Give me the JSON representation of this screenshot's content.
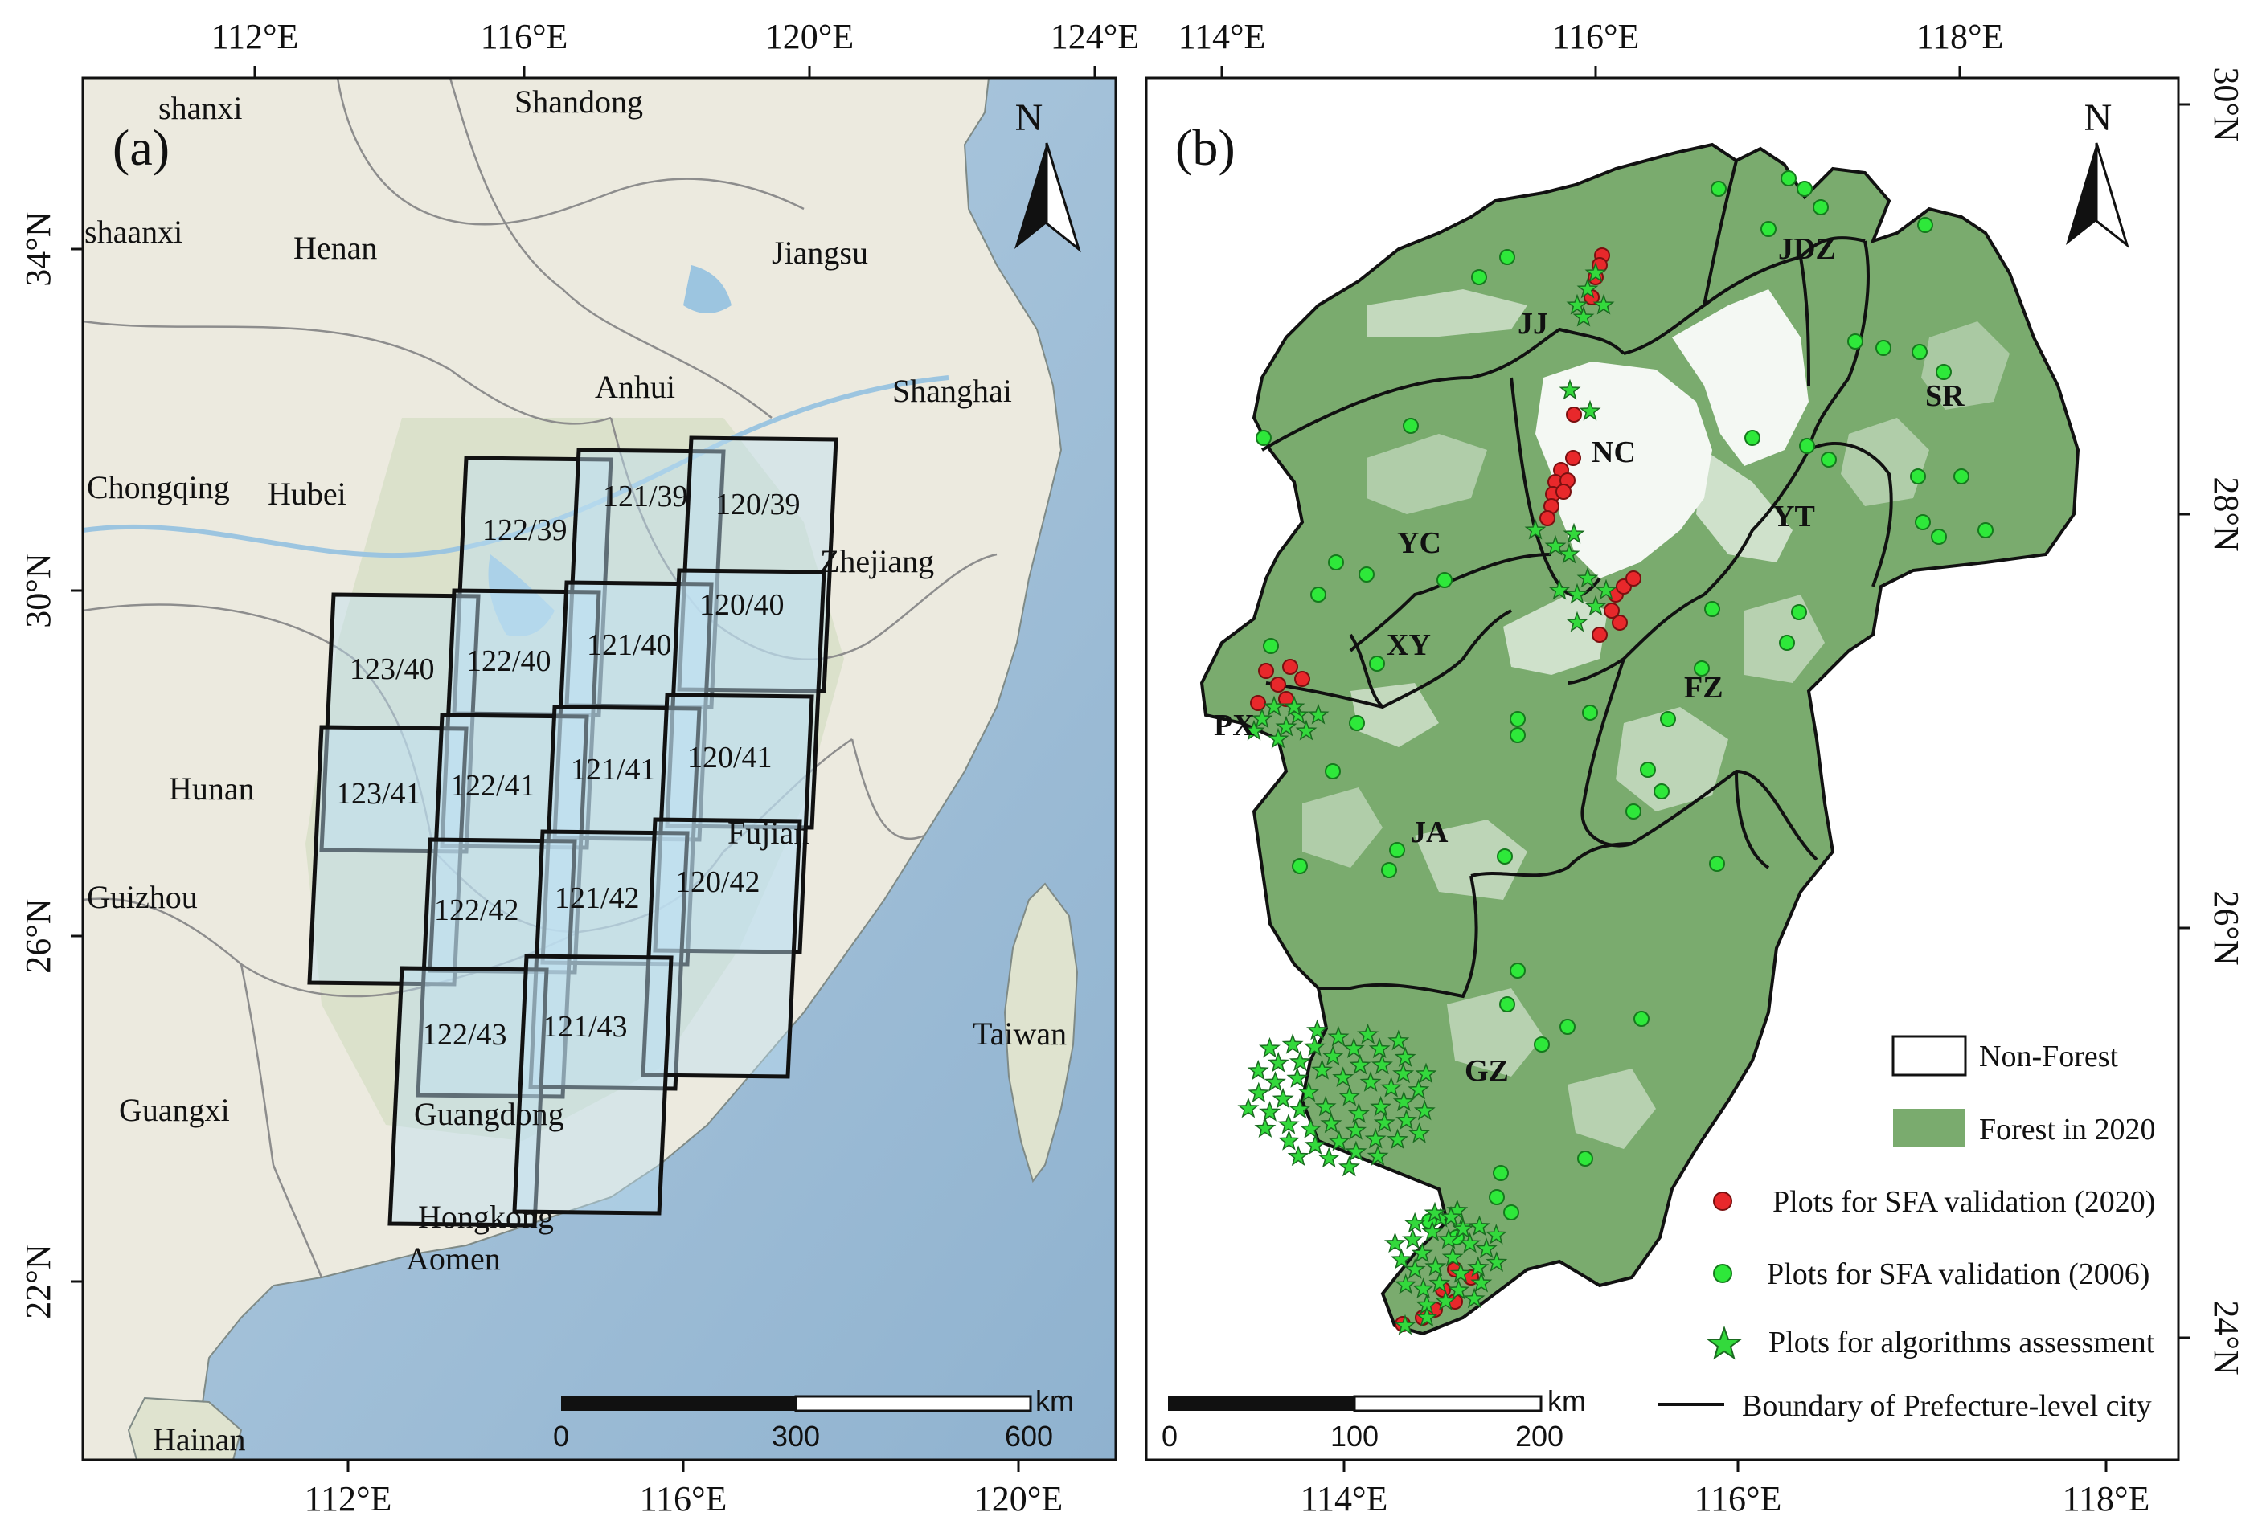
{
  "panel_a": {
    "tag": "(a)",
    "top_ticks": [
      "112°E",
      "116°E",
      "120°E",
      "124°E"
    ],
    "bottom_ticks": [
      "112°E",
      "116°E",
      "120°E"
    ],
    "left_ticks": [
      "34°N",
      "30°N",
      "26°N",
      "22°N"
    ],
    "north_label": "N",
    "place_labels": [
      {
        "text": "shanxi"
      },
      {
        "text": "Shandong"
      },
      {
        "text": "shaanxi"
      },
      {
        "text": "Henan"
      },
      {
        "text": "Jiangsu"
      },
      {
        "text": "Anhui"
      },
      {
        "text": "Shanghai"
      },
      {
        "text": "Chongqing"
      },
      {
        "text": "Hubei"
      },
      {
        "text": "Zhejiang"
      },
      {
        "text": "Hunan"
      },
      {
        "text": "Fujian"
      },
      {
        "text": "Guizhou"
      },
      {
        "text": "Taiwan"
      },
      {
        "text": "Guangxi"
      },
      {
        "text": "Guangdong"
      },
      {
        "text": "Hongkong"
      },
      {
        "text": "Aomen"
      },
      {
        "text": "Hainan"
      }
    ],
    "scene_labels": [
      "122/39",
      "121/39",
      "120/39",
      "123/40",
      "122/40",
      "121/40",
      "120/40",
      "123/41",
      "122/41",
      "121/41",
      "120/41",
      "122/42",
      "121/42",
      "120/42",
      "122/43",
      "121/43"
    ],
    "scale_bar": {
      "unit": "km",
      "labels": [
        "0",
        "300",
        "600"
      ]
    }
  },
  "panel_b": {
    "tag": "(b)",
    "top_ticks": [
      "114°E",
      "116°E",
      "118°E"
    ],
    "bottom_ticks": [
      "114°E",
      "116°E",
      "118°E"
    ],
    "right_ticks": [
      "30°N",
      "28°N",
      "26°N",
      "24°N"
    ],
    "north_label": "N",
    "city_labels": [
      "JJ",
      "JDZ",
      "SR",
      "NC",
      "YC",
      "YT",
      "XY",
      "FZ",
      "PX",
      "JA",
      "GZ"
    ],
    "scale_bar": {
      "unit": "km",
      "labels": [
        "0",
        "100",
        "200"
      ]
    },
    "legend": [
      {
        "label": "Non-Forest",
        "symbol": "white-box"
      },
      {
        "label": "Forest in 2020",
        "symbol": "green-box"
      },
      {
        "label": "Plots for SFA validation (2020)",
        "symbol": "red-dot"
      },
      {
        "label": "Plots for SFA validation (2006)",
        "symbol": "green-dot"
      },
      {
        "label": "Plots for algorithms assessment",
        "symbol": "green-star"
      },
      {
        "label": "Boundary of Prefecture-level city",
        "symbol": "black-line"
      }
    ]
  },
  "colors": {
    "sea": "#a9c6dc",
    "land": "#ecebe0",
    "forest": "#7aab6e",
    "forest_dark": "#5e9456",
    "red_plot": "#e8282b",
    "green_plot": "#2ee83a",
    "star": "#33d93c",
    "scene_fill": "#bfe0f2"
  }
}
